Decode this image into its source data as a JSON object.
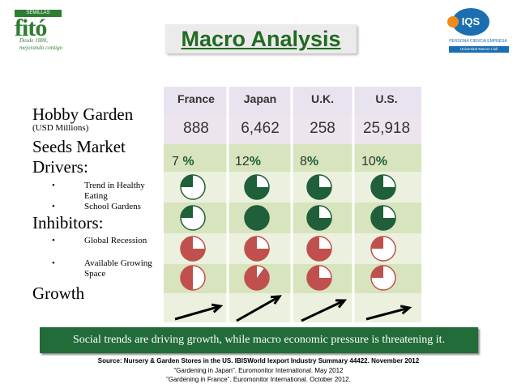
{
  "logo_left": {
    "brand_top": "SEMILLAS",
    "brand_main": "fitó",
    "tagline_1": "Desde 1880,",
    "tagline_2": "mejorando contigo"
  },
  "logo_right": {
    "mark": "IQS",
    "subtitle": "PERSONA CIENCIA EMPRESA",
    "bar_text": "Universitat Ramon Llull"
  },
  "title": "Macro Analysis",
  "left": {
    "hobby_garden": "Hobby Garden",
    "usd": "(USD Millions)",
    "seeds_market": "Seeds Market",
    "drivers": "Drivers:",
    "driver_items": [
      "Trend in Healthy Eating",
      "School Gardens"
    ],
    "inhibitors": "Inhibitors:",
    "inhibitor_items": [
      "Global Recession",
      "Available Growing Space"
    ],
    "growth": "Growth",
    "bullet": "•"
  },
  "table": {
    "countries": [
      "France",
      "Japan",
      "U.K.",
      "U.S."
    ],
    "values": [
      "888",
      "6,462",
      "258",
      "25,918"
    ],
    "percents": [
      "7",
      "12",
      "8",
      "10"
    ],
    "percent_symbol": "%"
  },
  "pies": {
    "driver_rows": [
      {
        "kind": "driver",
        "fills": [
          0.25,
          0.75,
          0.75,
          0.75
        ]
      },
      {
        "kind": "driver",
        "fills": [
          0.25,
          1.0,
          0.75,
          0.75
        ]
      }
    ],
    "inhibitor_rows": [
      {
        "kind": "inhibitor",
        "fills": [
          0.75,
          0.75,
          0.75,
          0.25
        ]
      },
      {
        "kind": "inhibitor",
        "fills": [
          0.5,
          0.9,
          0.75,
          0.25
        ]
      }
    ]
  },
  "colors": {
    "green": "#1f5f3a",
    "red": "#c0504d",
    "row_light": "#ebf1de",
    "row_mid": "#d7e4bd",
    "header": "#e8e3ee",
    "banner": "#226c3a"
  },
  "footer": {
    "banner": "Social trends are driving growth, while macro economic pressure is threatening it.",
    "source_1": "Source: Nursery & Garden Stores in the US. IBISWorld Iexport Industry Summary 44422. November 2012",
    "source_2": "“Gardening in Japan”. Euromonitor International. May 2012",
    "source_3": "”Gardening in France”. Euromonitor International. October 2012."
  }
}
